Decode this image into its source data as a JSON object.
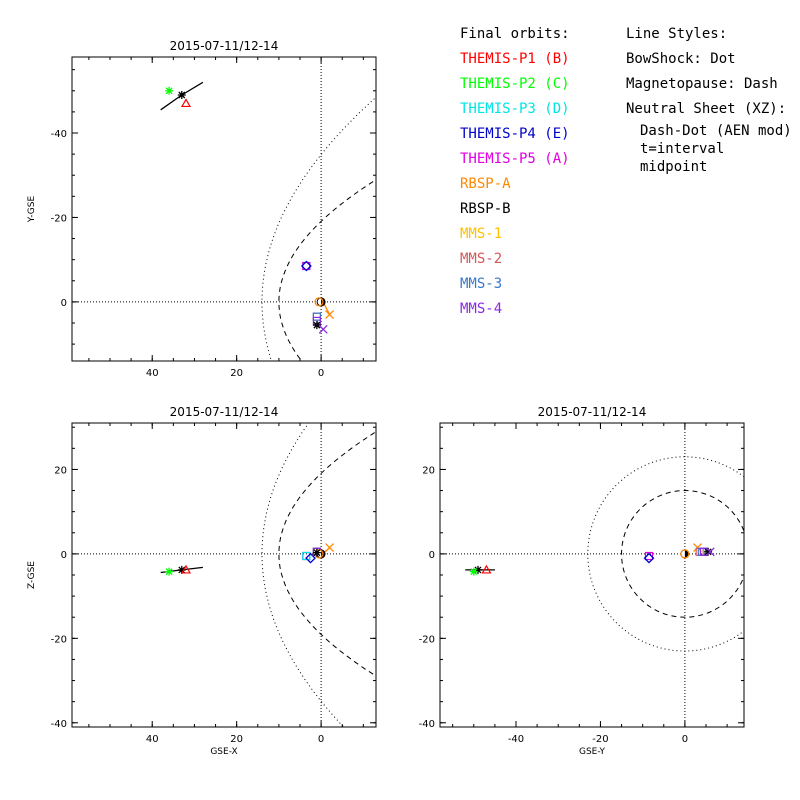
{
  "legend": {
    "title": "Final orbits:",
    "satellites": [
      {
        "label": "THEMIS-P1 (B)",
        "color": "#ff0000"
      },
      {
        "label": "THEMIS-P2 (C)",
        "color": "#00ff00"
      },
      {
        "label": "THEMIS-P3 (D)",
        "color": "#00e5e5"
      },
      {
        "label": "THEMIS-P4 (E)",
        "color": "#0000cc"
      },
      {
        "label": "THEMIS-P5 (A)",
        "color": "#e000e0"
      },
      {
        "label": "RBSP-A",
        "color": "#ff8800"
      },
      {
        "label": "RBSP-B",
        "color": "#000000"
      },
      {
        "label": "MMS-1",
        "color": "#ffc000"
      },
      {
        "label": "MMS-2",
        "color": "#d45a5a"
      },
      {
        "label": "MMS-3",
        "color": "#3a78c8"
      },
      {
        "label": "MMS-4",
        "color": "#8a2be2"
      }
    ]
  },
  "line_styles": {
    "title": "Line Styles:",
    "bowshock": "BowShock: Dot",
    "magnetopause": "Magnetopause: Dash",
    "neutral_sheet": "Neutral Sheet (XZ):",
    "neutral_sheet_style": "Dash-Dot (AEN mod)",
    "midpoint_note": "t=interval midpoint"
  },
  "chart_data": [
    {
      "type": "scatter",
      "panel": "top-left",
      "title": "2015-07-11/12-14",
      "xlabel": "",
      "ylabel": "Y-GSE",
      "xlim": [
        59,
        -13
      ],
      "ylim": [
        14,
        -58
      ],
      "xticks": [
        40,
        20,
        0
      ],
      "yticks": [
        -40,
        -20,
        0
      ],
      "grid": false,
      "points": [
        {
          "x": 33,
          "y": -49,
          "color": "#000000",
          "marker": "asterisk"
        },
        {
          "x": 36,
          "y": -50,
          "color": "#00ff00",
          "marker": "asterisk"
        },
        {
          "x": 32,
          "y": -47,
          "color": "#ff0000",
          "marker": "triangle"
        },
        {
          "x": 3.5,
          "y": -8.5,
          "color": "#00e5e5",
          "marker": "square"
        },
        {
          "x": 3.5,
          "y": -8.5,
          "color": "#e000e0",
          "marker": "square"
        },
        {
          "x": 3.5,
          "y": -8.5,
          "color": "#0000cc",
          "marker": "diamond"
        },
        {
          "x": 0,
          "y": 0,
          "color": "#000000",
          "marker": "earth"
        },
        {
          "x": 0.5,
          "y": 0,
          "color": "#ff8800",
          "marker": "circle"
        },
        {
          "x": -2,
          "y": 3,
          "color": "#ff8800",
          "marker": "x"
        },
        {
          "x": 1,
          "y": 3.5,
          "color": "#d45a5a",
          "marker": "square"
        },
        {
          "x": 1,
          "y": 3.5,
          "color": "#3a78c8",
          "marker": "square"
        },
        {
          "x": 1,
          "y": 4.5,
          "color": "#8a2be2",
          "marker": "square"
        },
        {
          "x": 1,
          "y": 5.5,
          "color": "#000000",
          "marker": "asterisk"
        },
        {
          "x": -0.5,
          "y": 6.5,
          "color": "#8a2be2",
          "marker": "x"
        }
      ],
      "tracks": [
        {
          "color": "#000000",
          "x": [
            28,
            33,
            38
          ],
          "y": [
            -52,
            -49,
            -45.5
          ]
        },
        {
          "color": "#ff8800",
          "x": [
            -0.5,
            -1.5,
            -2
          ],
          "y": [
            0,
            2,
            3
          ]
        },
        {
          "color": "#8a2be2",
          "x": [
            1,
            0.5,
            -0.5
          ],
          "y": [
            4.5,
            5.5,
            6.5
          ]
        }
      ]
    },
    {
      "type": "scatter",
      "panel": "bottom-left",
      "title": "2015-07-11/12-14",
      "xlabel": "GSE-X",
      "ylabel": "Z-GSE",
      "xlim": [
        59,
        -13
      ],
      "ylim": [
        -41,
        31
      ],
      "xticks": [
        40,
        20,
        0
      ],
      "yticks": [
        -40,
        -20,
        0,
        20
      ],
      "grid": false,
      "points": [
        {
          "x": 33,
          "y": -3.8,
          "color": "#000000",
          "marker": "asterisk"
        },
        {
          "x": 36,
          "y": -4.2,
          "color": "#00ff00",
          "marker": "asterisk"
        },
        {
          "x": 32,
          "y": -3.8,
          "color": "#ff0000",
          "marker": "triangle"
        },
        {
          "x": 3.5,
          "y": -0.5,
          "color": "#e000e0",
          "marker": "square"
        },
        {
          "x": 3.5,
          "y": -0.5,
          "color": "#00e5e5",
          "marker": "square"
        },
        {
          "x": 2.5,
          "y": -1,
          "color": "#0000cc",
          "marker": "diamond"
        },
        {
          "x": 1,
          "y": 0.5,
          "color": "#d45a5a",
          "marker": "square"
        },
        {
          "x": 1,
          "y": 0.5,
          "color": "#3a78c8",
          "marker": "square"
        },
        {
          "x": 1,
          "y": 0.5,
          "color": "#8a2be2",
          "marker": "square"
        },
        {
          "x": 0,
          "y": 0,
          "color": "#000000",
          "marker": "earth"
        },
        {
          "x": 0.5,
          "y": 0,
          "color": "#ff8800",
          "marker": "circle"
        },
        {
          "x": -2,
          "y": 1.5,
          "color": "#ff8800",
          "marker": "x"
        },
        {
          "x": 1,
          "y": 0.3,
          "color": "#000000",
          "marker": "asterisk"
        }
      ],
      "tracks": [
        {
          "color": "#000000",
          "x": [
            28,
            33,
            38
          ],
          "y": [
            -3.2,
            -3.8,
            -4.4
          ]
        },
        {
          "color": "#ff8800",
          "x": [
            -0.5,
            -1.5,
            -2
          ],
          "y": [
            0.2,
            1,
            1.5
          ]
        }
      ]
    },
    {
      "type": "scatter",
      "panel": "bottom-right",
      "title": "2015-07-11/12-14",
      "xlabel": "GSE-Y",
      "ylabel": "",
      "xlim": [
        -58,
        14
      ],
      "ylim": [
        -41,
        31
      ],
      "xticks": [
        -40,
        -20,
        0
      ],
      "yticks": [
        -40,
        -20,
        0,
        20
      ],
      "grid": false,
      "points": [
        {
          "x": -49,
          "y": -3.8,
          "color": "#000000",
          "marker": "asterisk"
        },
        {
          "x": -50,
          "y": -4.2,
          "color": "#00ff00",
          "marker": "asterisk"
        },
        {
          "x": -47,
          "y": -3.8,
          "color": "#ff0000",
          "marker": "triangle"
        },
        {
          "x": -8.5,
          "y": -0.5,
          "color": "#e000e0",
          "marker": "square"
        },
        {
          "x": -8.5,
          "y": -1,
          "color": "#0000cc",
          "marker": "diamond"
        },
        {
          "x": 0,
          "y": 0,
          "color": "#000000",
          "marker": "earth"
        },
        {
          "x": 0,
          "y": 0,
          "color": "#ff8800",
          "marker": "circle"
        },
        {
          "x": 3,
          "y": 1.5,
          "color": "#ff8800",
          "marker": "x"
        },
        {
          "x": 3.5,
          "y": 0.5,
          "color": "#d45a5a",
          "marker": "square"
        },
        {
          "x": 4,
          "y": 0.5,
          "color": "#3a78c8",
          "marker": "square"
        },
        {
          "x": 4.5,
          "y": 0.5,
          "color": "#8a2be2",
          "marker": "square"
        },
        {
          "x": 5.5,
          "y": 0.5,
          "color": "#000000",
          "marker": "asterisk"
        },
        {
          "x": 6,
          "y": 0.5,
          "color": "#8a2be2",
          "marker": "x"
        }
      ],
      "tracks": [
        {
          "color": "#000000",
          "x": [
            -52,
            -49,
            -45
          ],
          "y": [
            -3.8,
            -3.8,
            -3.8
          ]
        }
      ]
    }
  ]
}
